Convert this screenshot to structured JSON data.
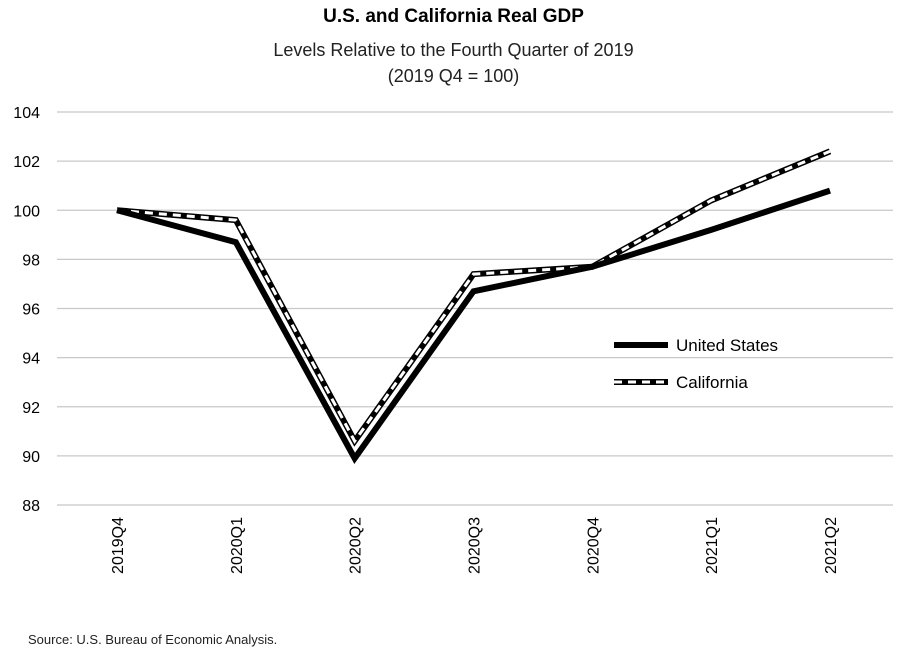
{
  "chart_data": {
    "type": "line",
    "title": "U.S. and California Real GDP",
    "subtitle": [
      "Levels Relative to the Fourth Quarter of 2019",
      "(2019 Q4 = 100)"
    ],
    "categories": [
      "2019Q4",
      "2020Q1",
      "2020Q2",
      "2020Q3",
      "2020Q4",
      "2021Q1",
      "2021Q2"
    ],
    "series": [
      {
        "name": "United States",
        "values": [
          100.0,
          98.7,
          89.9,
          96.7,
          97.7,
          99.2,
          100.8
        ],
        "style": "solid",
        "color": "#000000"
      },
      {
        "name": "California",
        "values": [
          100.0,
          99.6,
          90.6,
          97.4,
          97.7,
          100.4,
          102.4
        ],
        "style": "dashed",
        "color": "#000000"
      }
    ],
    "ylim": [
      88,
      104
    ],
    "yticks": [
      88,
      90,
      92,
      94,
      96,
      98,
      100,
      102,
      104
    ],
    "grid": true,
    "legend_position": "right-middle",
    "source": "Source: U.S. Bureau of Economic Analysis."
  }
}
